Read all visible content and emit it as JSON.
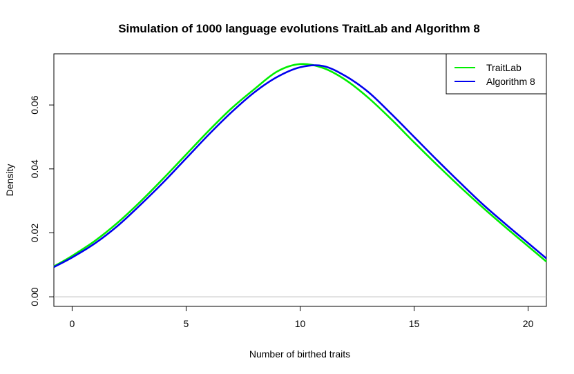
{
  "chart_data": {
    "type": "line",
    "title": "Simulation of 1000 language evolutions TraitLab and Algorithm 8",
    "xlabel": "Number of birthed traits",
    "ylabel": "Density",
    "xlim": [
      -0.8,
      20.8
    ],
    "ylim": [
      -0.003,
      0.076
    ],
    "xticks": [
      0,
      5,
      10,
      15,
      20
    ],
    "xtick_labels": [
      "0",
      "5",
      "10",
      "15",
      "20"
    ],
    "yticks": [
      0.0,
      0.02,
      0.04,
      0.06
    ],
    "ytick_labels": [
      "0.00",
      "0.02",
      "0.04",
      "0.06"
    ],
    "zero_line": true,
    "grid": false,
    "legend_position": "top-right",
    "series": [
      {
        "name": "TraitLab",
        "color": "#00ee00",
        "x": [
          -0.8,
          0,
          1,
          2,
          3,
          4,
          5,
          6,
          7,
          8,
          9,
          10,
          11,
          12,
          13,
          14,
          15,
          16,
          17,
          18,
          19,
          20,
          20.8
        ],
        "y": [
          0.0095,
          0.0128,
          0.0175,
          0.0232,
          0.0298,
          0.037,
          0.0445,
          0.052,
          0.059,
          0.065,
          0.0705,
          0.0728,
          0.0716,
          0.0678,
          0.0622,
          0.0555,
          0.0483,
          0.0413,
          0.0345,
          0.028,
          0.0218,
          0.0158,
          0.011
        ]
      },
      {
        "name": "Algorithm 8",
        "color": "#0000ee",
        "x": [
          -0.8,
          0,
          1,
          2,
          3,
          4,
          5,
          6,
          7,
          8,
          9,
          10,
          11,
          12,
          13,
          14,
          15,
          16,
          17,
          18,
          19,
          20,
          20.8
        ],
        "y": [
          0.0093,
          0.0123,
          0.0167,
          0.0222,
          0.0288,
          0.0358,
          0.0433,
          0.0508,
          0.0578,
          0.064,
          0.0688,
          0.0718,
          0.0722,
          0.069,
          0.064,
          0.0572,
          0.05,
          0.0428,
          0.0358,
          0.029,
          0.0228,
          0.0168,
          0.012
        ]
      }
    ]
  }
}
